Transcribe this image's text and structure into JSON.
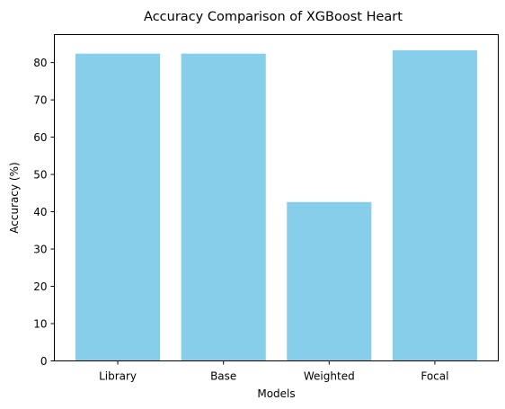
{
  "chart_data": {
    "type": "bar",
    "title": "Accuracy Comparison of XGBoost Heart",
    "xlabel": "Models",
    "ylabel": "Accuracy (%)",
    "categories": [
      "Library",
      "Base",
      "Weighted",
      "Focal"
    ],
    "values": [
      82.4,
      82.4,
      42.6,
      83.3
    ],
    "ylim": [
      0,
      87.5
    ],
    "yticks": [
      0,
      10,
      20,
      30,
      40,
      50,
      60,
      70,
      80
    ],
    "bar_color": "#87ceeb",
    "grid": false,
    "legend": "none"
  }
}
